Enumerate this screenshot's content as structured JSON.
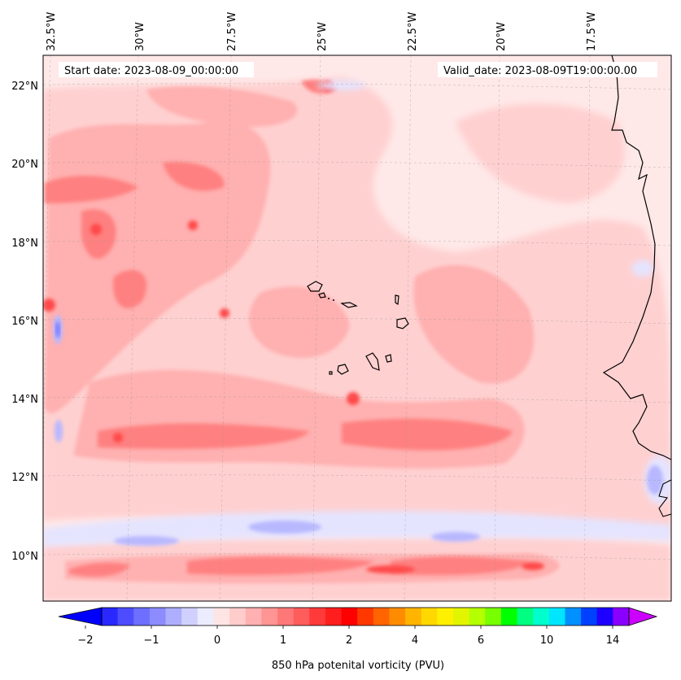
{
  "header": {
    "start_date": "Start date: 2023-08-09_00:00:00",
    "valid_date": "Valid_date: 2023-08-09T19:00:00.00"
  },
  "axes": {
    "lon_labels": [
      "32.5°W",
      "30°W",
      "27.5°W",
      "25°W",
      "22.5°W",
      "20°W",
      "17.5°W"
    ],
    "lat_labels": [
      "22°N",
      "20°N",
      "18°N",
      "16°N",
      "14°N",
      "12°N",
      "10°N"
    ],
    "lon_range": [
      -33.0,
      -16.0
    ],
    "lat_range": [
      8.9,
      22.8
    ]
  },
  "colorbar": {
    "label": "850 hPa potenital vorticity (PVU)",
    "tick_labels": [
      "−2",
      "−1",
      "0",
      "1",
      "2",
      "4",
      "6",
      "10",
      "14"
    ],
    "colors": [
      "#0000ff",
      "#2929ff",
      "#4d4dff",
      "#6e6eff",
      "#8c8cff",
      "#aeaeff",
      "#d0d0ff",
      "#ececff",
      "#ffe4e4",
      "#ffcccc",
      "#ffb0b0",
      "#ff9494",
      "#ff7878",
      "#ff5c5c",
      "#ff3a3a",
      "#ff1e1e",
      "#ff0000",
      "#ff3800",
      "#ff6400",
      "#ff8c00",
      "#ffb400",
      "#ffd800",
      "#fff000",
      "#e2f500",
      "#b4ff00",
      "#78ff00",
      "#00ff00",
      "#00ff80",
      "#00ffcc",
      "#00e6ff",
      "#0090ff",
      "#0040ff",
      "#1e00ff",
      "#8a00ff",
      "#cc00ff"
    ]
  },
  "field_colors": {
    "background": "#ffe8e8",
    "light": "#ffd0d0",
    "medium": "#ffb0b0",
    "strong": "#ff8080",
    "core": "#ff4848",
    "neg_light": "#e4e4ff",
    "neg_medium": "#b8b8ff",
    "neg_strong": "#7a7aff"
  }
}
